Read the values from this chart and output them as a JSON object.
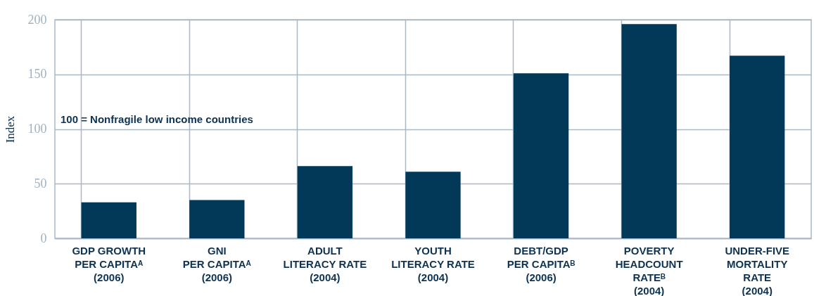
{
  "chart_data": {
    "type": "bar",
    "ylabel": "Index",
    "categories": [
      "GDP GROWTH\nPER CAPITAᴬ\n(2006)",
      "GNI\nPER CAPITAᴬ\n(2006)",
      "ADULT\nLITERACY RATE\n(2004)",
      "YOUTH\nLITERACY RATE\n(2004)",
      "DEBT/GDP\nPER CAPITAᴮ\n(2006)",
      "POVERTY\nHEADCOUNT\nRATEᴮ\n(2004)",
      "UNDER-FIVE\nMORTALITY\nRATE\n(2004)"
    ],
    "values": [
      33,
      35,
      66,
      61,
      151,
      196,
      167
    ],
    "color": "#023858",
    "ylim": [
      0,
      200
    ],
    "yticks": [
      0,
      50,
      100,
      150,
      200
    ],
    "grid": true,
    "annotations": [
      "100 = Nonfragile low income countries"
    ]
  }
}
